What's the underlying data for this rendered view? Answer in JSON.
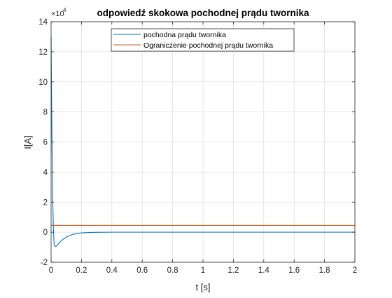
{
  "chart_data": {
    "type": "line",
    "title": "odpowiedź skokowa pochodnej prądu twornika",
    "xlabel": "t [s]",
    "ylabel": "I[A]",
    "y_exponent_label": "×10",
    "y_exponent_power": "4",
    "xlim": [
      0,
      2
    ],
    "ylim": [
      -2,
      14
    ],
    "grid": true,
    "legend_position": "top-center",
    "x_ticks": [
      0,
      0.2,
      0.4,
      0.6,
      0.8,
      1,
      1.2,
      1.4,
      1.6,
      1.8,
      2
    ],
    "x_tick_labels": [
      "0",
      "0.2",
      "0.4",
      "0.6",
      "0.8",
      "1",
      "1.2",
      "1.4",
      "1.6",
      "1.8",
      "2"
    ],
    "y_ticks": [
      -2,
      0,
      2,
      4,
      6,
      8,
      10,
      12,
      14
    ],
    "y_tick_labels": [
      "-2",
      "0",
      "2",
      "4",
      "6",
      "8",
      "10",
      "12",
      "14"
    ],
    "series": [
      {
        "name": "pochodna prądu twornika",
        "color": "#0072BD",
        "x": [
          0,
          0.002,
          0.004,
          0.006,
          0.008,
          0.01,
          0.015,
          0.02,
          0.025,
          0.03,
          0.035,
          0.04,
          0.05,
          0.06,
          0.08,
          0.1,
          0.12,
          0.15,
          0.2,
          0.25,
          0.3,
          0.4,
          0.5,
          0.7,
          1.0,
          1.5,
          2.0
        ],
        "y": [
          13.0,
          10.2,
          7.8,
          5.8,
          4.1,
          2.7,
          0.3,
          -0.8,
          -0.92,
          -0.95,
          -0.92,
          -0.87,
          -0.76,
          -0.64,
          -0.46,
          -0.33,
          -0.23,
          -0.13,
          -0.05,
          -0.02,
          -0.01,
          0,
          0,
          0,
          0,
          0,
          0
        ]
      },
      {
        "name": "Ograniczenie pochodnej prądu twornika",
        "color": "#D95319",
        "x": [
          0,
          2
        ],
        "y": [
          0.45,
          0.45
        ]
      }
    ]
  }
}
